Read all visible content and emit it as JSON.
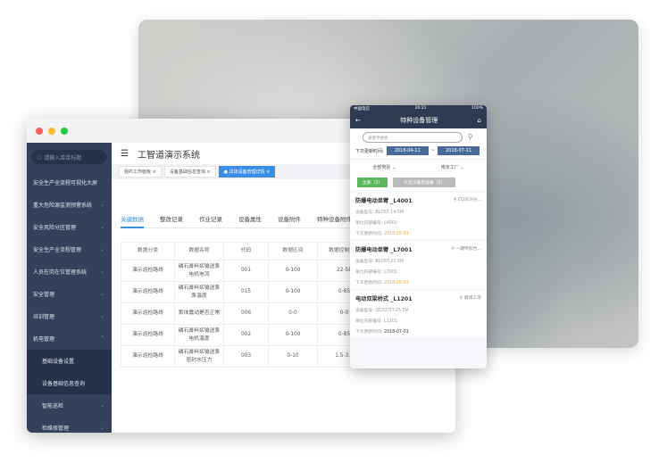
{
  "brand_colors": {
    "accent": "#3a8ee6",
    "sidebar": "#33415a",
    "green": "#5cb85c",
    "orange": "#f0a030"
  },
  "desktop": {
    "search_placeholder": "请输入菜单标题",
    "app_title": "工智道演示系统",
    "menu": [
      {
        "label": "安全生产全流程可视化大屏"
      },
      {
        "label": "重大危险源监测预警系统",
        "chevron": "down"
      },
      {
        "label": "安全风险分区管理",
        "chevron": "down"
      },
      {
        "label": "安全生产全流程管理",
        "chevron": "down"
      },
      {
        "label": "人员在岗在位管理系统",
        "chevron": "down"
      },
      {
        "label": "安全管理",
        "chevron": "down"
      },
      {
        "label": "培训管理",
        "chevron": "down"
      },
      {
        "label": "机电管理",
        "chevron": "up"
      },
      {
        "label": "基础设备设置"
      },
      {
        "label": "设备基础信息查询"
      },
      {
        "label": "智能巡检",
        "chevron": "down"
      },
      {
        "label": "检维修管理",
        "chevron": "down"
      }
    ],
    "open_tabs": [
      "我的工作面板",
      "设备基础信息查询",
      "具体设备管理详情"
    ],
    "sub_tabs": [
      "关键数据",
      "整改记录",
      "作业记录",
      "设备属性",
      "设备附件",
      "特种设备附件"
    ],
    "table": {
      "headers": [
        "数据分类",
        "数据名称",
        "代码",
        "数据区间",
        "数据控制区间"
      ],
      "rows": [
        [
          "演示巡检路线",
          "磷石膏料浆输送泵电机电流",
          "001",
          "0-100",
          "22-58"
        ],
        [
          "演示巡检路线",
          "磷石膏料浆输送泵泵温度",
          "015",
          "0-100",
          "0-65"
        ],
        [
          "演示巡检路线",
          "泵体震动是否正常",
          "006",
          "0-0",
          "0-0"
        ],
        [
          "演示巡检路线",
          "磷石膏料浆输送泵电机温度",
          "002",
          "0-100",
          "0-85"
        ],
        [
          "演示巡检路线",
          "磷石膏料浆输送泵密封水压力",
          "003",
          "0-10",
          "1.5-3.5"
        ]
      ]
    }
  },
  "mobile": {
    "carrier": "中国电信",
    "time": "20:21",
    "battery": "100%",
    "title": "特种设备管理",
    "search_placeholder": "关键字搜索",
    "date_label": "下次更新时间:",
    "date_from": "2018-04-11",
    "date_sep": "~",
    "date_to": "2018-07-11",
    "filter_type": "全部类别",
    "filter_factory": "南京工厂",
    "btn_all": "全部（3）",
    "btn_overdue": "只显示临检设备（2）",
    "cards": [
      {
        "name": "防爆电动单臂 _L4001",
        "location": "CO深冷分...",
        "model_label": "设备型号:",
        "model": "BLDST-14.5M",
        "code_label": "单位内部编号:",
        "code": "L4001",
        "next_label": "下次更新时间:",
        "next": "2018-05-01",
        "overdue": true
      },
      {
        "name": "防爆电动单臂 _L7001",
        "location": "一期甲醇合...",
        "model_label": "设备型号:",
        "model": "BLDST-22.5M",
        "code_label": "单位内部编号:",
        "code": "L7001",
        "next_label": "下次更新时间:",
        "next": "2018-05-01",
        "overdue": true
      },
      {
        "name": "电动双梁桥式 _L1201",
        "location": "磨煤工序",
        "model_label": "设备型号:",
        "model": "QD32/5T-25.5M",
        "code_label": "单位内部编号:",
        "code": "L1201",
        "next_label": "下次更新时间:",
        "next": "2018-07-01",
        "overdue": false
      }
    ]
  }
}
